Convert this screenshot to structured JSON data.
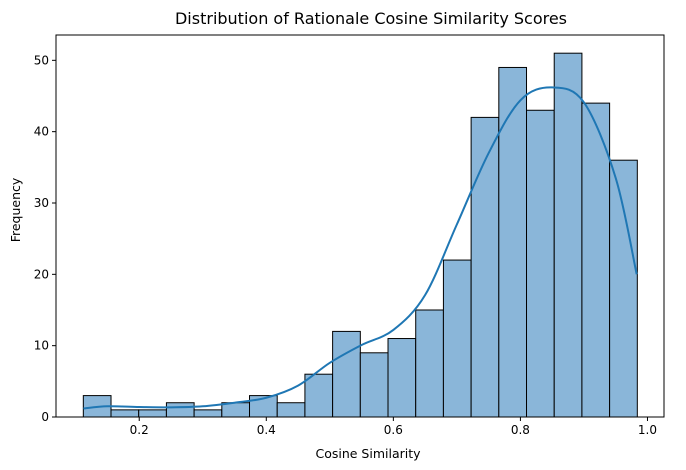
{
  "chart_data": {
    "type": "bar",
    "title": "Distribution of Rationale Cosine Similarity Scores",
    "xlabel": "Cosine Similarity",
    "ylabel": "Frequency",
    "xlim": [
      0.069,
      1.026
    ],
    "ylim": [
      0,
      53.55
    ],
    "xticks": [
      0.2,
      0.4,
      0.6,
      0.8,
      1.0
    ],
    "xtick_labels": [
      "0.2",
      "0.4",
      "0.6",
      "0.8",
      "1.0"
    ],
    "yticks": [
      0,
      10,
      20,
      30,
      40,
      50
    ],
    "ytick_labels": [
      "0",
      "10",
      "20",
      "30",
      "40",
      "50"
    ],
    "bin_start": 0.112,
    "bin_width": 0.0436,
    "values": [
      3,
      1,
      1,
      2,
      1,
      2,
      3,
      2,
      6,
      12,
      9,
      11,
      15,
      22,
      42,
      49,
      43,
      51,
      44,
      36
    ],
    "kde": {
      "x": [
        0.112,
        0.15,
        0.2,
        0.25,
        0.3,
        0.35,
        0.4,
        0.45,
        0.5,
        0.55,
        0.6,
        0.65,
        0.7,
        0.75,
        0.8,
        0.85,
        0.9,
        0.95,
        0.983
      ],
      "y": [
        1.2,
        1.5,
        1.4,
        1.35,
        1.5,
        2.0,
        2.7,
        4.4,
        7.6,
        10.1,
        12.2,
        17.1,
        27.0,
        37.0,
        44.4,
        46.2,
        44.1,
        33.5,
        20.0
      ]
    },
    "grid": false,
    "colors": {
      "bar_fill": "#8ab6d9",
      "bar_edge": "#000000",
      "kde_line": "#1f77b4"
    }
  }
}
